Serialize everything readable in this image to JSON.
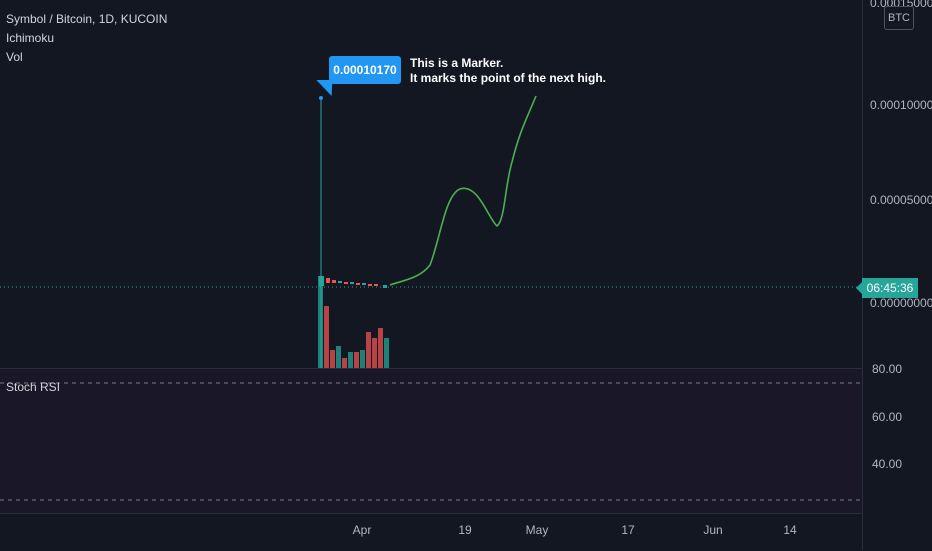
{
  "legend": {
    "symbol_line": "Symbol / Bitcoin, 1D, KUCOIN",
    "ichimoku": "Ichimoku",
    "vol": "Vol"
  },
  "rsi": {
    "label": "Stoch RSI",
    "ticks": [
      "80.00",
      "60.00",
      "40.00"
    ]
  },
  "price_axis": {
    "currency": "BTC",
    "top_label": "0.00015000",
    "labels": [
      "0.00010000",
      "0.00005000",
      "0.00000000"
    ],
    "countdown": "06:45:36"
  },
  "time_axis": {
    "labels": [
      "Apr",
      "19",
      "May",
      "17",
      "Jun",
      "14"
    ]
  },
  "marker": {
    "value": "0.00010170",
    "note_line1": "This is a Marker.",
    "note_line2": "It marks the point of the next high."
  },
  "colors": {
    "background": "#131722",
    "up": "#26a69a",
    "down": "#ef5350",
    "drawing": "#4caf50",
    "marker": "#2196f3",
    "rsi_bg": "#1a1828"
  }
}
